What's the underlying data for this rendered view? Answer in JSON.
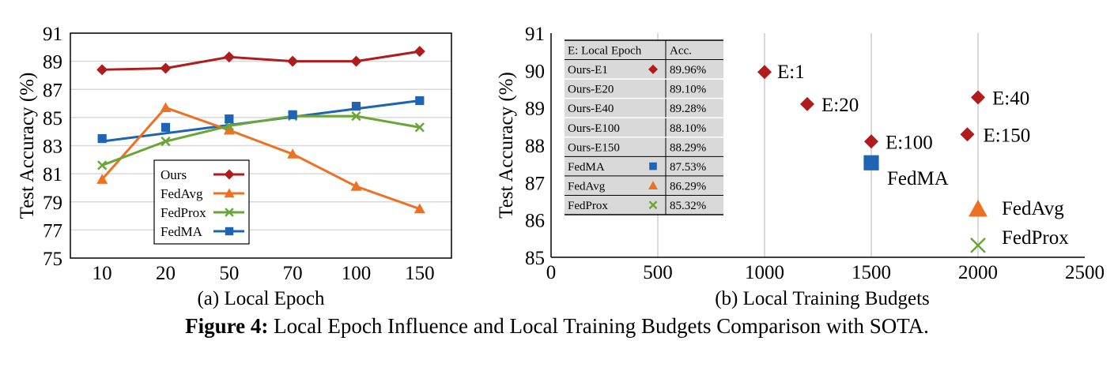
{
  "caption": {
    "label": "Figure 4:",
    "text": "Local Epoch Influence and Local Training Budgets Comparison with SOTA."
  },
  "chart_data": [
    {
      "type": "line",
      "title": "(a) Local Epoch",
      "xlabel": "",
      "ylabel": "Test Accuracy (%)",
      "categories": [
        "10",
        "20",
        "50",
        "70",
        "100",
        "150"
      ],
      "ylim": [
        75,
        91
      ],
      "yticks": [
        75,
        77,
        79,
        81,
        83,
        85,
        87,
        89,
        91
      ],
      "grid": true,
      "legend_position": "center-left",
      "series": [
        {
          "name": "Ours",
          "color": "#b01c1c",
          "marker": "diamond",
          "values": [
            88.4,
            88.5,
            89.3,
            89.0,
            89.0,
            89.7
          ]
        },
        {
          "name": "FedAvg",
          "color": "#ee7023",
          "marker": "triangle",
          "values": [
            80.6,
            85.7,
            84.1,
            82.4,
            80.1,
            78.5
          ]
        },
        {
          "name": "FedProx",
          "color": "#6aa636",
          "marker": "x",
          "values": [
            81.6,
            83.3,
            84.4,
            85.1,
            85.1,
            84.3
          ]
        },
        {
          "name": "FedMA",
          "color": "#1f63b5",
          "marker": "square",
          "values": [
            83.5,
            84.3,
            84.9,
            85.2,
            85.8,
            86.2
          ]
        }
      ],
      "trendline": {
        "series": "FedMA",
        "color": "#1f63b5",
        "start": 83.3,
        "end": 86.2
      }
    },
    {
      "type": "scatter",
      "title": "(b) Local Training Budgets",
      "xlabel": "",
      "ylabel": "Test Accuracy (%)",
      "xlim": [
        0,
        2500
      ],
      "ylim": [
        85,
        91
      ],
      "xticks": [
        0,
        500,
        1000,
        1500,
        2000,
        2500
      ],
      "yticks": [
        85,
        86,
        87,
        88,
        89,
        90,
        91
      ],
      "grid": true,
      "points": [
        {
          "label": "E:1",
          "x": 1000,
          "y": 89.96,
          "marker": "diamond",
          "color": "#b01c1c"
        },
        {
          "label": "E:20",
          "x": 1200,
          "y": 89.1,
          "marker": "diamond",
          "color": "#b01c1c"
        },
        {
          "label": "E:40",
          "x": 2000,
          "y": 89.28,
          "marker": "diamond",
          "color": "#b01c1c"
        },
        {
          "label": "E:100",
          "x": 1500,
          "y": 88.1,
          "marker": "diamond",
          "color": "#b01c1c"
        },
        {
          "label": "E:150",
          "x": 1950,
          "y": 88.29,
          "marker": "diamond",
          "color": "#b01c1c"
        },
        {
          "label": "FedMA",
          "x": 1500,
          "y": 87.53,
          "marker": "square",
          "color": "#1f63b5"
        },
        {
          "label": "FedAvg",
          "x": 2000,
          "y": 86.29,
          "marker": "triangle",
          "color": "#ee7023"
        },
        {
          "label": "FedProx",
          "x": 2000,
          "y": 85.32,
          "marker": "x",
          "color": "#6aa636"
        }
      ],
      "table": {
        "headers": [
          "E: Local Epoch",
          "Acc."
        ],
        "rows": [
          {
            "name": "Ours-E1",
            "marker": "diamond",
            "color": "#b01c1c",
            "acc": "89.96%"
          },
          {
            "name": "Ours-E20",
            "marker": "",
            "color": "",
            "acc": "89.10%"
          },
          {
            "name": "Ours-E40",
            "marker": "",
            "color": "",
            "acc": "89.28%"
          },
          {
            "name": "Ours-E100",
            "marker": "",
            "color": "",
            "acc": "88.10%"
          },
          {
            "name": "Ours-E150",
            "marker": "",
            "color": "",
            "acc": "88.29%"
          },
          {
            "name": "FedMA",
            "marker": "square",
            "color": "#1f63b5",
            "acc": "87.53%"
          },
          {
            "name": "FedAvg",
            "marker": "triangle",
            "color": "#ee7023",
            "acc": "86.29%"
          },
          {
            "name": "FedProx",
            "marker": "x",
            "color": "#6aa636",
            "acc": "85.32%"
          }
        ]
      }
    }
  ]
}
